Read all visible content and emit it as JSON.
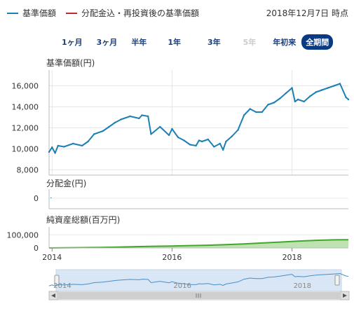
{
  "legend": [
    {
      "label": "基準価額",
      "color": "#1c7fb6"
    },
    {
      "label": "分配金込・再投資後の基準価額",
      "color": "#c0282d"
    }
  ],
  "as_of": "2018年12月7日 時点",
  "periods": [
    {
      "label": "1ヶ月",
      "state": "normal"
    },
    {
      "label": "3ヶ月",
      "state": "normal"
    },
    {
      "label": "半年",
      "state": "normal"
    },
    {
      "label": "1年",
      "state": "normal"
    },
    {
      "label": "3年",
      "state": "normal"
    },
    {
      "label": "5年",
      "state": "disabled"
    },
    {
      "label": "年初来",
      "state": "normal"
    },
    {
      "label": "全期間",
      "state": "active"
    }
  ],
  "chart_data": [
    {
      "type": "line",
      "title": "基準価額(円)",
      "ylim": [
        7500,
        17500
      ],
      "yticks": [
        "8,000",
        "10,000",
        "12,000",
        "14,000",
        "16,000"
      ],
      "yvalues": [
        8000,
        10000,
        12000,
        14000,
        16000
      ],
      "series": [
        {
          "color": "#1c7fb6",
          "x": [
            2013.95,
            2014.0,
            2014.05,
            2014.1,
            2014.2,
            2014.35,
            2014.5,
            2014.6,
            2014.7,
            2014.85,
            2014.95,
            2015.05,
            2015.15,
            2015.3,
            2015.45,
            2015.5,
            2015.6,
            2015.65,
            2015.8,
            2015.95,
            2016.0,
            2016.1,
            2016.2,
            2016.3,
            2016.4,
            2016.45,
            2016.5,
            2016.6,
            2016.7,
            2016.8,
            2016.85,
            2016.9,
            2017.0,
            2017.1,
            2017.2,
            2017.3,
            2017.4,
            2017.5,
            2017.6,
            2017.7,
            2017.8,
            2017.9,
            2018.0,
            2018.05,
            2018.1,
            2018.2,
            2018.3,
            2018.4,
            2018.5,
            2018.6,
            2018.7,
            2018.8,
            2018.9,
            2018.94
          ],
          "values": [
            9700,
            10150,
            9600,
            10300,
            10200,
            10500,
            10300,
            10700,
            11400,
            11700,
            12100,
            12500,
            12800,
            13100,
            12900,
            13200,
            13100,
            11400,
            12100,
            11300,
            11900,
            11100,
            10800,
            10400,
            10300,
            10800,
            10700,
            10900,
            10200,
            10500,
            9900,
            10700,
            11200,
            11800,
            13200,
            13800,
            13500,
            13500,
            14200,
            14400,
            14800,
            15300,
            15800,
            14500,
            14700,
            14500,
            15000,
            15400,
            15600,
            15800,
            16000,
            16200,
            14900,
            14700
          ]
        }
      ]
    },
    {
      "type": "bar",
      "title": "分配金(円)",
      "yticks": [
        "0"
      ],
      "yvalues": [
        0
      ],
      "ylim": [
        0,
        1
      ],
      "values": [
        0
      ]
    },
    {
      "type": "area",
      "title": "純資産総額(百万円)",
      "yticks": [
        "0",
        "100,000"
      ],
      "yvalues": [
        0,
        100000
      ],
      "ylim": [
        0,
        160000
      ],
      "series": [
        {
          "color": "#44a52e",
          "x": [
            2013.95,
            2014.2,
            2014.5,
            2014.8,
            2015.1,
            2015.4,
            2015.7,
            2016.0,
            2016.3,
            2016.6,
            2016.9,
            2017.2,
            2017.5,
            2017.8,
            2018.1,
            2018.4,
            2018.7,
            2018.94
          ],
          "values": [
            0,
            1000,
            2500,
            4500,
            7000,
            10000,
            13000,
            15000,
            18000,
            21000,
            25000,
            31000,
            38000,
            45000,
            52000,
            58000,
            62000,
            63000
          ]
        }
      ]
    }
  ],
  "xaxis": {
    "ticks": [
      "2014",
      "2016",
      "2018"
    ],
    "values": [
      2014,
      2016,
      2018
    ],
    "xlim": [
      2013.95,
      2018.94
    ]
  },
  "navigator": {
    "ticks": [
      "2014",
      "2016",
      "2018"
    ]
  }
}
